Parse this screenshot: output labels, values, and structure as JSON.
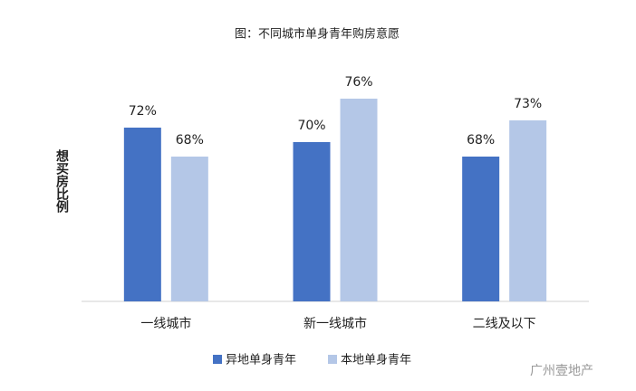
{
  "chart_data": {
    "type": "bar",
    "title": "图：不同城市单身青年购房意愿",
    "y_label": "想买房比例",
    "categories": [
      "一线城市",
      "新一线城市",
      "二线及以下"
    ],
    "series": [
      {
        "name": "异地单身青年",
        "color": "#4472c4",
        "values": [
          72,
          70,
          68
        ],
        "value_labels": [
          "72%",
          "70%",
          "68%"
        ]
      },
      {
        "name": "本地单身青年",
        "color": "#b4c7e7",
        "values": [
          68,
          76,
          73
        ],
        "value_labels": [
          "68%",
          "76%",
          "73%"
        ]
      }
    ],
    "ylim": [
      48,
      80
    ],
    "legend": "bottom",
    "watermark": "广州壹地产"
  }
}
